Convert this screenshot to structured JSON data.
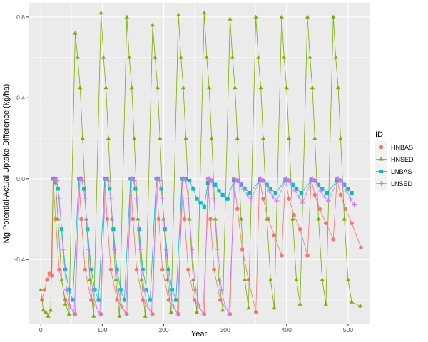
{
  "chart_data": {
    "type": "line",
    "title": "",
    "xlabel": "Year",
    "ylabel": "Mg Potential-Actual Uptake Difference (kg/ha)",
    "xlim": [
      -20,
      535
    ],
    "ylim": [
      -0.72,
      0.87
    ],
    "x_ticks": [
      0,
      100,
      200,
      300,
      400,
      500
    ],
    "y_ticks": [
      -0.4,
      0.0,
      0.4,
      0.8
    ],
    "x_tick_labels": [
      "0",
      "100",
      "200",
      "300",
      "400",
      "500"
    ],
    "y_tick_labels": [
      "-0.4",
      "0.0",
      "0.4",
      "0.8"
    ],
    "grid": true,
    "legend": {
      "title": "ID",
      "position": "right"
    },
    "series": [
      {
        "name": "HNBAS",
        "color": "#F8766D",
        "marker": "circle",
        "x": [
          2,
          6,
          10,
          14,
          18,
          20,
          24,
          30,
          40,
          56,
          62,
          66,
          72,
          82,
          98,
          104,
          108,
          114,
          124,
          140,
          146,
          150,
          156,
          166,
          182,
          188,
          192,
          198,
          208,
          224,
          230,
          234,
          240,
          250,
          266,
          272,
          276,
          282,
          292,
          308,
          314,
          320,
          328,
          338,
          350,
          356,
          362,
          370,
          380,
          392,
          398,
          404,
          412,
          422,
          434,
          440,
          446,
          454,
          464,
          476,
          482,
          488,
          496,
          506,
          521
        ],
        "y": [
          -0.6,
          -0.55,
          -0.5,
          -0.47,
          -0.48,
          0.0,
          -0.2,
          -0.45,
          -0.6,
          -0.67,
          0.0,
          -0.2,
          -0.45,
          -0.6,
          -0.67,
          0.0,
          -0.2,
          -0.45,
          -0.6,
          -0.67,
          0.0,
          -0.2,
          -0.45,
          -0.6,
          -0.67,
          0.0,
          -0.2,
          -0.45,
          -0.6,
          -0.67,
          0.0,
          -0.2,
          -0.45,
          -0.6,
          -0.67,
          0.0,
          -0.2,
          -0.45,
          -0.6,
          -0.67,
          0.0,
          -0.15,
          -0.35,
          -0.5,
          -0.66,
          0.0,
          -0.1,
          -0.2,
          -0.28,
          -0.38,
          0.0,
          -0.1,
          -0.18,
          -0.25,
          -0.38,
          0.0,
          -0.08,
          -0.15,
          -0.22,
          -0.3,
          0.0,
          -0.08,
          -0.15,
          -0.22,
          -0.34
        ]
      },
      {
        "name": "HNSED",
        "color": "#7CAE00",
        "marker": "triangle",
        "x": [
          0,
          4,
          8,
          12,
          16,
          20,
          24,
          28,
          34,
          40,
          46,
          56,
          60,
          64,
          68,
          74,
          80,
          86,
          98,
          102,
          106,
          110,
          116,
          122,
          128,
          140,
          144,
          148,
          152,
          158,
          164,
          170,
          182,
          186,
          190,
          194,
          200,
          206,
          212,
          224,
          228,
          232,
          236,
          242,
          248,
          254,
          266,
          270,
          274,
          278,
          284,
          290,
          296,
          308,
          312,
          316,
          320,
          326,
          332,
          338,
          350,
          354,
          358,
          362,
          368,
          374,
          380,
          392,
          396,
          400,
          404,
          410,
          416,
          422,
          434,
          438,
          442,
          446,
          452,
          458,
          464,
          476,
          480,
          484,
          488,
          494,
          500,
          506,
          520
        ],
        "y": [
          -0.55,
          -0.65,
          -0.66,
          -0.68,
          -0.65,
          0.0,
          -0.02,
          -0.2,
          -0.5,
          -0.62,
          -0.67,
          0.72,
          0.6,
          0.45,
          0.2,
          -0.2,
          -0.5,
          -0.68,
          0.82,
          0.6,
          0.45,
          0.2,
          -0.2,
          -0.5,
          -0.68,
          0.8,
          0.6,
          0.45,
          0.2,
          -0.2,
          -0.5,
          -0.68,
          0.76,
          0.6,
          0.45,
          0.2,
          -0.2,
          -0.5,
          -0.66,
          0.81,
          0.6,
          0.45,
          0.2,
          -0.2,
          -0.5,
          -0.66,
          0.82,
          0.6,
          0.45,
          0.2,
          -0.2,
          -0.5,
          -0.65,
          0.79,
          0.6,
          0.45,
          0.2,
          -0.2,
          -0.5,
          -0.64,
          0.8,
          0.6,
          0.45,
          0.2,
          -0.2,
          -0.5,
          -0.64,
          0.8,
          0.6,
          0.45,
          0.2,
          -0.2,
          -0.5,
          -0.62,
          0.8,
          0.6,
          0.45,
          0.2,
          -0.2,
          -0.5,
          -0.62,
          0.8,
          0.6,
          0.45,
          0.2,
          -0.2,
          -0.5,
          -0.61,
          -0.63
        ]
      },
      {
        "name": "LNBAS",
        "color": "#00BFC4",
        "marker": "square",
        "x": [
          20,
          24,
          28,
          34,
          40,
          46,
          52,
          62,
          66,
          70,
          76,
          82,
          88,
          94,
          104,
          108,
          112,
          118,
          124,
          130,
          136,
          146,
          150,
          154,
          160,
          166,
          172,
          178,
          188,
          192,
          196,
          202,
          208,
          214,
          220,
          230,
          236,
          242,
          248,
          254,
          260,
          266,
          272,
          278,
          284,
          290,
          296,
          304,
          314,
          320,
          326,
          332,
          340,
          356,
          362,
          368,
          374,
          382,
          398,
          404,
          410,
          416,
          424,
          440,
          446,
          452,
          458,
          466,
          482,
          488,
          494,
          500,
          506
        ],
        "y": [
          0.0,
          0.0,
          -0.05,
          -0.25,
          -0.45,
          -0.55,
          -0.6,
          0.0,
          0.0,
          -0.05,
          -0.25,
          -0.45,
          -0.55,
          -0.6,
          0.0,
          0.0,
          -0.05,
          -0.25,
          -0.45,
          -0.55,
          -0.6,
          0.0,
          0.0,
          -0.05,
          -0.25,
          -0.45,
          -0.55,
          -0.6,
          0.0,
          0.0,
          -0.05,
          -0.25,
          -0.45,
          -0.55,
          -0.6,
          0.0,
          0.0,
          -0.01,
          -0.05,
          -0.1,
          -0.12,
          -0.14,
          -0.02,
          -0.01,
          -0.03,
          -0.06,
          -0.08,
          -0.1,
          -0.01,
          -0.01,
          -0.03,
          -0.05,
          -0.07,
          -0.01,
          -0.01,
          -0.03,
          -0.05,
          -0.07,
          -0.01,
          -0.01,
          -0.03,
          -0.05,
          -0.07,
          -0.01,
          -0.01,
          -0.03,
          -0.05,
          -0.07,
          -0.01,
          -0.01,
          -0.03,
          -0.05,
          -0.07
        ]
      },
      {
        "name": "LNSED",
        "color": "#C77CFF",
        "marker": "plus",
        "x": [
          22,
          26,
          30,
          36,
          42,
          48,
          54,
          64,
          68,
          72,
          78,
          84,
          90,
          96,
          106,
          110,
          114,
          120,
          126,
          132,
          138,
          148,
          152,
          156,
          162,
          168,
          174,
          180,
          190,
          194,
          198,
          204,
          210,
          216,
          222,
          232,
          236,
          240,
          246,
          252,
          258,
          264,
          274,
          278,
          282,
          288,
          294,
          300,
          306,
          316,
          320,
          324,
          330,
          336,
          342,
          358,
          362,
          366,
          372,
          378,
          384,
          400,
          404,
          408,
          414,
          420,
          426,
          442,
          446,
          450,
          456,
          462,
          468,
          484,
          488,
          492,
          498,
          504,
          510
        ],
        "y": [
          0.0,
          -0.01,
          -0.1,
          -0.35,
          -0.55,
          -0.63,
          -0.67,
          0.0,
          -0.01,
          -0.1,
          -0.35,
          -0.55,
          -0.63,
          -0.67,
          0.0,
          -0.01,
          -0.1,
          -0.35,
          -0.55,
          -0.63,
          -0.67,
          0.0,
          -0.01,
          -0.1,
          -0.35,
          -0.55,
          -0.63,
          -0.67,
          0.0,
          -0.01,
          -0.1,
          -0.35,
          -0.55,
          -0.63,
          -0.67,
          0.0,
          -0.01,
          -0.1,
          -0.35,
          -0.55,
          -0.63,
          -0.67,
          0.0,
          -0.01,
          -0.1,
          -0.35,
          -0.55,
          -0.63,
          -0.67,
          0.0,
          -0.01,
          -0.02,
          -0.05,
          -0.08,
          -0.1,
          0.0,
          -0.01,
          -0.03,
          -0.06,
          -0.09,
          -0.11,
          0.0,
          -0.01,
          -0.03,
          -0.06,
          -0.09,
          -0.12,
          0.0,
          -0.01,
          -0.03,
          -0.06,
          -0.09,
          -0.11,
          0.0,
          -0.01,
          -0.03,
          -0.06,
          -0.1,
          -0.13
        ]
      }
    ]
  }
}
